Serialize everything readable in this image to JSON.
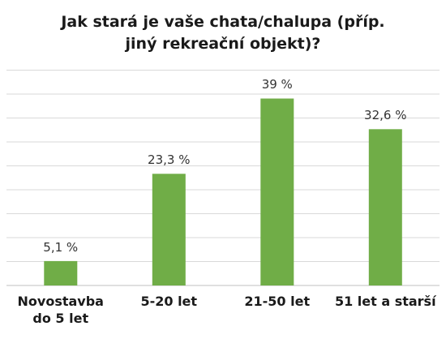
{
  "chart_data": {
    "type": "bar",
    "title_lines": [
      "Jak stará je vaše chata/chalupa (příp.",
      "jiný rekreační objekt)?"
    ],
    "categories": [
      "Novostavba\ndo 5 let",
      "5-20 let",
      "21-50 let",
      "51 let a starší"
    ],
    "values": [
      5.1,
      23.3,
      39,
      32.6
    ],
    "data_labels": [
      "5,1 %",
      "23,3 %",
      "39 %",
      "32,6 %"
    ],
    "ylim": [
      0,
      45
    ],
    "grid": true,
    "legend": "none",
    "bar_color": "#70ad47",
    "gridline_color": "#d9d9d9"
  }
}
